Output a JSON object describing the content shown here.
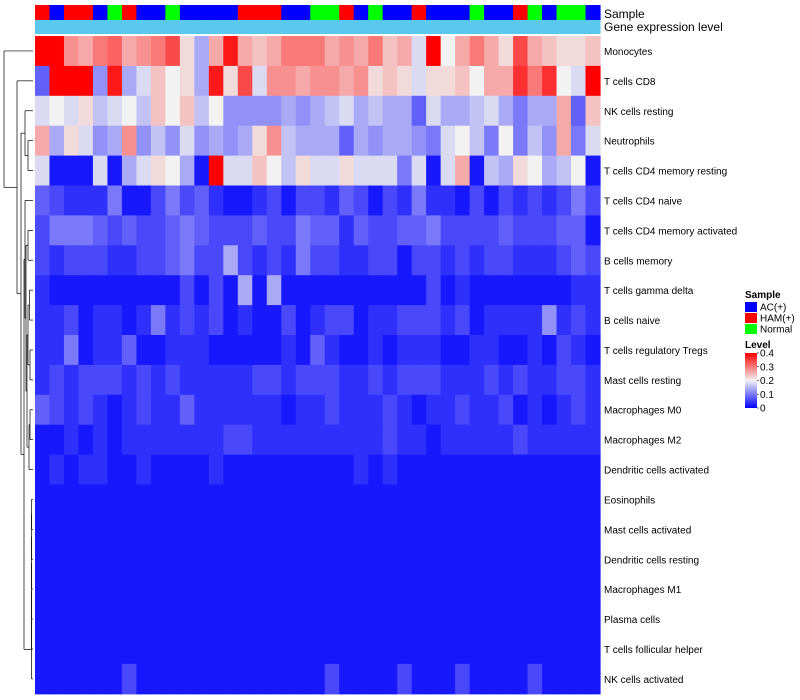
{
  "chart_data": {
    "type": "heatmap",
    "colors": {
      "ac": "#0000FF",
      "ham": "#FF0000",
      "normal": "#00FF00",
      "gene_bar": "#5BC8EE",
      "low": "#0000FF",
      "mid": "#F2F2F2",
      "high": "#FF0000",
      "dendrogram": "#000000"
    },
    "annotation_tracks": {
      "sample_label": "Sample",
      "gene_label": "Gene expression level"
    },
    "samples": [
      "HAM",
      "AC",
      "HAM",
      "HAM",
      "AC",
      "Normal",
      "HAM",
      "AC",
      "AC",
      "Normal",
      "AC",
      "AC",
      "AC",
      "AC",
      "HAM",
      "HAM",
      "HAM",
      "AC",
      "AC",
      "Normal",
      "Normal",
      "HAM",
      "AC",
      "Normal",
      "AC",
      "AC",
      "HAM",
      "AC",
      "AC",
      "AC",
      "Normal",
      "AC",
      "AC",
      "HAM",
      "Normal",
      "AC",
      "Normal",
      "Normal",
      "AC"
    ],
    "rows": [
      "Monocytes",
      "T cells CD8",
      "NK cells resting",
      "Neutrophils",
      "T cells CD4 memory resting",
      "T cells CD4 naive",
      "T cells CD4 memory activated",
      "B cells memory",
      "T cells gamma delta",
      "B cells naive",
      "T cells regulatory  Tregs",
      "Mast cells resting",
      "Macrophages M0",
      "Macrophages M2",
      "Dendritic cells activated",
      "Eosinophils",
      "Mast cells activated",
      "Dendritic cells resting",
      "Macrophages M1",
      "Plasma cells",
      "T cells follicular helper",
      "NK cells activated"
    ],
    "values": [
      [
        0.4,
        0.4,
        0.28,
        0.26,
        0.3,
        0.32,
        0.26,
        0.28,
        0.3,
        0.34,
        0.22,
        0.14,
        0.26,
        0.38,
        0.26,
        0.24,
        0.26,
        0.3,
        0.3,
        0.3,
        0.26,
        0.28,
        0.26,
        0.3,
        0.24,
        0.26,
        0.18,
        0.4,
        0.2,
        0.26,
        0.3,
        0.26,
        0.22,
        0.34,
        0.26,
        0.24,
        0.22,
        0.22,
        0.24
      ],
      [
        0.08,
        0.4,
        0.4,
        0.4,
        0.12,
        0.38,
        0.14,
        0.18,
        0.24,
        0.2,
        0.22,
        0.14,
        0.38,
        0.22,
        0.34,
        0.18,
        0.28,
        0.28,
        0.26,
        0.28,
        0.28,
        0.26,
        0.28,
        0.22,
        0.24,
        0.22,
        0.18,
        0.22,
        0.22,
        0.24,
        0.2,
        0.26,
        0.26,
        0.36,
        0.3,
        0.36,
        0.2,
        0.18,
        0.4
      ],
      [
        0.18,
        0.2,
        0.18,
        0.22,
        0.16,
        0.18,
        0.2,
        0.16,
        0.24,
        0.2,
        0.24,
        0.16,
        0.2,
        0.12,
        0.12,
        0.12,
        0.12,
        0.14,
        0.12,
        0.14,
        0.16,
        0.18,
        0.14,
        0.16,
        0.14,
        0.14,
        0.08,
        0.18,
        0.14,
        0.14,
        0.16,
        0.18,
        0.14,
        0.1,
        0.14,
        0.14,
        0.26,
        0.08,
        0.24
      ],
      [
        0.26,
        0.14,
        0.22,
        0.18,
        0.12,
        0.14,
        0.28,
        0.12,
        0.16,
        0.12,
        0.18,
        0.12,
        0.14,
        0.12,
        0.14,
        0.22,
        0.28,
        0.16,
        0.14,
        0.14,
        0.14,
        0.08,
        0.14,
        0.12,
        0.14,
        0.14,
        0.12,
        0.1,
        0.18,
        0.2,
        0.16,
        0.1,
        0.2,
        0.1,
        0.16,
        0.12,
        0.26,
        0.1,
        0.18
      ],
      [
        0.18,
        0.02,
        0.02,
        0.02,
        0.18,
        0.02,
        0.14,
        0.18,
        0.22,
        0.2,
        0.14,
        0.02,
        0.4,
        0.18,
        0.18,
        0.24,
        0.2,
        0.16,
        0.22,
        0.18,
        0.18,
        0.22,
        0.18,
        0.18,
        0.18,
        0.1,
        0.18,
        0.02,
        0.18,
        0.26,
        0.02,
        0.16,
        0.14,
        0.22,
        0.2,
        0.14,
        0.16,
        0.2,
        0.02
      ],
      [
        0.08,
        0.06,
        0.04,
        0.04,
        0.04,
        0.1,
        0.02,
        0.02,
        0.06,
        0.1,
        0.06,
        0.08,
        0.04,
        0.02,
        0.02,
        0.04,
        0.06,
        0.02,
        0.06,
        0.06,
        0.04,
        0.08,
        0.06,
        0.02,
        0.06,
        0.04,
        0.1,
        0.04,
        0.04,
        0.02,
        0.06,
        0.02,
        0.06,
        0.04,
        0.06,
        0.04,
        0.06,
        0.1,
        0.06
      ],
      [
        0.06,
        0.1,
        0.1,
        0.1,
        0.08,
        0.06,
        0.08,
        0.06,
        0.06,
        0.08,
        0.1,
        0.08,
        0.06,
        0.06,
        0.06,
        0.08,
        0.06,
        0.06,
        0.1,
        0.08,
        0.08,
        0.04,
        0.08,
        0.06,
        0.06,
        0.08,
        0.08,
        0.1,
        0.06,
        0.06,
        0.06,
        0.06,
        0.08,
        0.06,
        0.06,
        0.06,
        0.08,
        0.08,
        0.02
      ],
      [
        0.06,
        0.04,
        0.06,
        0.06,
        0.06,
        0.04,
        0.04,
        0.06,
        0.06,
        0.08,
        0.1,
        0.06,
        0.06,
        0.14,
        0.06,
        0.04,
        0.06,
        0.04,
        0.1,
        0.06,
        0.06,
        0.04,
        0.04,
        0.06,
        0.06,
        0.02,
        0.06,
        0.06,
        0.04,
        0.06,
        0.04,
        0.06,
        0.06,
        0.04,
        0.04,
        0.04,
        0.06,
        0.08,
        0.06
      ],
      [
        0.04,
        0.02,
        0.02,
        0.02,
        0.02,
        0.02,
        0.02,
        0.02,
        0.02,
        0.02,
        0.06,
        0.02,
        0.06,
        0.02,
        0.14,
        0.02,
        0.14,
        0.02,
        0.02,
        0.02,
        0.02,
        0.02,
        0.02,
        0.02,
        0.02,
        0.02,
        0.02,
        0.06,
        0.02,
        0.04,
        0.02,
        0.02,
        0.02,
        0.02,
        0.02,
        0.02,
        0.02,
        0.04,
        0.04
      ],
      [
        0.04,
        0.04,
        0.06,
        0.02,
        0.04,
        0.04,
        0.02,
        0.04,
        0.1,
        0.04,
        0.06,
        0.04,
        0.06,
        0.02,
        0.04,
        0.02,
        0.02,
        0.06,
        0.02,
        0.04,
        0.06,
        0.06,
        0.02,
        0.04,
        0.04,
        0.06,
        0.06,
        0.06,
        0.04,
        0.06,
        0.02,
        0.04,
        0.04,
        0.04,
        0.04,
        0.12,
        0.04,
        0.06,
        0.04
      ],
      [
        0.04,
        0.04,
        0.1,
        0.02,
        0.04,
        0.04,
        0.08,
        0.02,
        0.02,
        0.04,
        0.04,
        0.04,
        0.02,
        0.02,
        0.02,
        0.02,
        0.02,
        0.04,
        0.02,
        0.08,
        0.04,
        0.02,
        0.02,
        0.04,
        0.02,
        0.04,
        0.04,
        0.04,
        0.02,
        0.02,
        0.04,
        0.04,
        0.02,
        0.02,
        0.04,
        0.02,
        0.06,
        0.04,
        0.02
      ],
      [
        0.04,
        0.06,
        0.04,
        0.06,
        0.06,
        0.06,
        0.04,
        0.06,
        0.04,
        0.06,
        0.04,
        0.04,
        0.04,
        0.04,
        0.04,
        0.06,
        0.06,
        0.04,
        0.06,
        0.06,
        0.06,
        0.04,
        0.04,
        0.06,
        0.04,
        0.06,
        0.06,
        0.06,
        0.04,
        0.04,
        0.04,
        0.06,
        0.04,
        0.06,
        0.04,
        0.04,
        0.06,
        0.06,
        0.04
      ],
      [
        0.08,
        0.06,
        0.04,
        0.06,
        0.04,
        0.02,
        0.04,
        0.06,
        0.04,
        0.04,
        0.08,
        0.04,
        0.04,
        0.04,
        0.04,
        0.04,
        0.04,
        0.02,
        0.04,
        0.04,
        0.06,
        0.04,
        0.04,
        0.04,
        0.06,
        0.04,
        0.02,
        0.04,
        0.04,
        0.06,
        0.04,
        0.04,
        0.06,
        0.02,
        0.04,
        0.02,
        0.04,
        0.06,
        0.04
      ],
      [
        0.02,
        0.02,
        0.04,
        0.02,
        0.04,
        0.02,
        0.04,
        0.04,
        0.04,
        0.04,
        0.04,
        0.04,
        0.04,
        0.06,
        0.06,
        0.04,
        0.04,
        0.04,
        0.04,
        0.04,
        0.04,
        0.04,
        0.04,
        0.04,
        0.06,
        0.04,
        0.04,
        0.02,
        0.04,
        0.04,
        0.04,
        0.04,
        0.04,
        0.06,
        0.04,
        0.04,
        0.04,
        0.04,
        0.04
      ],
      [
        0.02,
        0.04,
        0.02,
        0.04,
        0.04,
        0.02,
        0.02,
        0.04,
        0.02,
        0.02,
        0.02,
        0.02,
        0.04,
        0.02,
        0.02,
        0.02,
        0.02,
        0.02,
        0.02,
        0.02,
        0.02,
        0.02,
        0.04,
        0.02,
        0.04,
        0.02,
        0.02,
        0.02,
        0.02,
        0.02,
        0.02,
        0.02,
        0.02,
        0.02,
        0.02,
        0.02,
        0.02,
        0.02,
        0.02
      ],
      [
        0.02,
        0.02,
        0.02,
        0.02,
        0.02,
        0.02,
        0.02,
        0.02,
        0.02,
        0.02,
        0.02,
        0.02,
        0.02,
        0.02,
        0.02,
        0.02,
        0.02,
        0.02,
        0.02,
        0.02,
        0.02,
        0.02,
        0.02,
        0.02,
        0.02,
        0.02,
        0.02,
        0.02,
        0.02,
        0.02,
        0.02,
        0.02,
        0.02,
        0.02,
        0.02,
        0.02,
        0.02,
        0.02,
        0.02
      ],
      [
        0.02,
        0.02,
        0.02,
        0.02,
        0.02,
        0.02,
        0.02,
        0.02,
        0.02,
        0.02,
        0.02,
        0.02,
        0.02,
        0.02,
        0.02,
        0.02,
        0.02,
        0.02,
        0.02,
        0.02,
        0.02,
        0.02,
        0.02,
        0.02,
        0.02,
        0.02,
        0.02,
        0.02,
        0.02,
        0.02,
        0.02,
        0.02,
        0.02,
        0.02,
        0.02,
        0.02,
        0.02,
        0.02,
        0.02
      ],
      [
        0.02,
        0.02,
        0.02,
        0.02,
        0.02,
        0.02,
        0.02,
        0.02,
        0.02,
        0.02,
        0.02,
        0.02,
        0.02,
        0.02,
        0.02,
        0.02,
        0.02,
        0.02,
        0.02,
        0.02,
        0.02,
        0.02,
        0.02,
        0.02,
        0.02,
        0.02,
        0.02,
        0.02,
        0.02,
        0.02,
        0.02,
        0.02,
        0.02,
        0.02,
        0.02,
        0.02,
        0.02,
        0.02,
        0.02
      ],
      [
        0.02,
        0.02,
        0.02,
        0.02,
        0.02,
        0.02,
        0.02,
        0.02,
        0.02,
        0.02,
        0.02,
        0.02,
        0.02,
        0.02,
        0.02,
        0.02,
        0.02,
        0.02,
        0.02,
        0.02,
        0.02,
        0.02,
        0.02,
        0.02,
        0.02,
        0.02,
        0.02,
        0.02,
        0.02,
        0.02,
        0.02,
        0.02,
        0.02,
        0.02,
        0.02,
        0.02,
        0.02,
        0.02,
        0.02
      ],
      [
        0.02,
        0.02,
        0.02,
        0.02,
        0.02,
        0.02,
        0.02,
        0.02,
        0.02,
        0.02,
        0.02,
        0.02,
        0.02,
        0.02,
        0.02,
        0.02,
        0.02,
        0.02,
        0.02,
        0.02,
        0.02,
        0.02,
        0.02,
        0.02,
        0.02,
        0.02,
        0.02,
        0.02,
        0.02,
        0.02,
        0.02,
        0.02,
        0.02,
        0.02,
        0.02,
        0.02,
        0.02,
        0.02,
        0.02
      ],
      [
        0.02,
        0.02,
        0.02,
        0.02,
        0.02,
        0.02,
        0.02,
        0.02,
        0.02,
        0.02,
        0.02,
        0.02,
        0.02,
        0.02,
        0.02,
        0.02,
        0.02,
        0.02,
        0.02,
        0.02,
        0.02,
        0.02,
        0.02,
        0.02,
        0.02,
        0.02,
        0.02,
        0.02,
        0.02,
        0.02,
        0.02,
        0.02,
        0.02,
        0.02,
        0.02,
        0.02,
        0.02,
        0.02,
        0.02
      ],
      [
        0.02,
        0.02,
        0.02,
        0.02,
        0.02,
        0.02,
        0.02,
        0.02,
        0.02,
        0.02,
        0.02,
        0.02,
        0.02,
        0.02,
        0.02,
        0.02,
        0.02,
        0.02,
        0.02,
        0.02,
        0.02,
        0.02,
        0.02,
        0.02,
        0.02,
        0.02,
        0.02,
        0.02,
        0.02,
        0.02,
        0.02,
        0.02,
        0.02,
        0.02,
        0.02,
        0.02,
        0.02,
        0.02,
        0.02
      ]
    ],
    "nk_activated_highlights": [
      6,
      20,
      25,
      29,
      34
    ],
    "color_scale": {
      "min": 0,
      "mid": 0.2,
      "max": 0.4
    },
    "legend": {
      "sample_title": "Sample",
      "sample_items": [
        {
          "key": "AC",
          "label": "AC(+)",
          "color": "#0000FF"
        },
        {
          "key": "HAM",
          "label": "HAM(+)",
          "color": "#FF0000"
        },
        {
          "key": "Normal",
          "label": "Normal",
          "color": "#00FF00"
        }
      ],
      "level_title": "Level",
      "level_ticks": [
        "0.4",
        "0.3",
        "0.2",
        "0.1",
        "0"
      ],
      "level_tick_values": [
        0.4,
        0.3,
        0.2,
        0.1,
        0
      ]
    }
  }
}
